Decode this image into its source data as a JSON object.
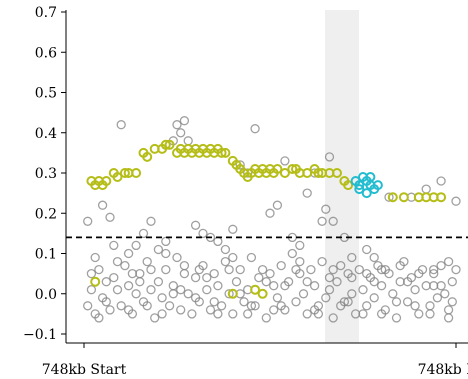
{
  "colors": {
    "background_points": "#808080",
    "highlight_points": "#b5bd17",
    "target_points": "#22bcd0",
    "threshold_line": "#000000",
    "shade": "#efefef"
  },
  "chart_data": {
    "type": "scatter",
    "title": "",
    "xlabel": "",
    "ylabel": "",
    "x_ticks": [
      "748kb Start",
      "748kb End"
    ],
    "y_ticks": [
      "0.7",
      "0.6",
      "0.5",
      "0.4",
      "0.3",
      "0.2",
      "0.1",
      "0.0",
      "−0.1"
    ],
    "y_tick_values": [
      0.7,
      0.6,
      0.5,
      0.4,
      0.3,
      0.2,
      0.1,
      0.0,
      -0.1
    ],
    "ylim": [
      -0.12,
      0.7
    ],
    "xlim": [
      -0.03,
      1.03
    ],
    "grid": false,
    "threshold": 0.14,
    "shaded_x_range": [
      0.68,
      0.8
    ],
    "series": [
      {
        "role": "background",
        "color": "#808080",
        "points": [
          [
            0.01,
            0.18
          ],
          [
            0.03,
            0.09
          ],
          [
            0.05,
            0.22
          ],
          [
            0.07,
            0.19
          ],
          [
            0.1,
            0.42
          ],
          [
            0.12,
            0.1
          ],
          [
            0.14,
            0.12
          ],
          [
            0.16,
            0.15
          ],
          [
            0.18,
            0.18
          ],
          [
            0.2,
            0.11
          ],
          [
            0.22,
            0.13
          ],
          [
            0.24,
            0.38
          ],
          [
            0.25,
            0.42
          ],
          [
            0.26,
            0.4
          ],
          [
            0.27,
            0.43
          ],
          [
            0.28,
            0.38
          ],
          [
            0.3,
            0.17
          ],
          [
            0.32,
            0.15
          ],
          [
            0.34,
            0.14
          ],
          [
            0.36,
            0.13
          ],
          [
            0.38,
            0.11
          ],
          [
            0.4,
            0.16
          ],
          [
            0.42,
            0.32
          ],
          [
            0.44,
            0.3
          ],
          [
            0.46,
            0.41
          ],
          [
            0.5,
            0.2
          ],
          [
            0.52,
            0.22
          ],
          [
            0.54,
            0.33
          ],
          [
            0.56,
            0.14
          ],
          [
            0.58,
            0.12
          ],
          [
            0.6,
            0.25
          ],
          [
            0.62,
            0.3
          ],
          [
            0.64,
            0.18
          ],
          [
            0.65,
            0.21
          ],
          [
            0.66,
            0.34
          ],
          [
            0.67,
            0.18
          ],
          [
            0.7,
            0.14
          ],
          [
            0.72,
            0.09
          ],
          [
            0.74,
            0.27
          ],
          [
            0.76,
            0.11
          ],
          [
            0.78,
            0.09
          ],
          [
            0.8,
            0.06
          ],
          [
            0.82,
            0.24
          ],
          [
            0.86,
            0.24
          ],
          [
            0.88,
            0.24
          ],
          [
            0.9,
            0.24
          ],
          [
            0.92,
            0.26
          ],
          [
            0.94,
            0.06
          ],
          [
            0.96,
            0.28
          ],
          [
            0.98,
            0.08
          ],
          [
            1.0,
            0.23
          ],
          [
            0.01,
            -0.03
          ],
          [
            0.02,
            0.01
          ],
          [
            0.03,
            -0.05
          ],
          [
            0.04,
            0.06
          ],
          [
            0.05,
            -0.01
          ],
          [
            0.06,
            0.03
          ],
          [
            0.07,
            -0.04
          ],
          [
            0.08,
            0.04
          ],
          [
            0.09,
            0.01
          ],
          [
            0.1,
            -0.03
          ],
          [
            0.11,
            0.07
          ],
          [
            0.12,
            0.02
          ],
          [
            0.13,
            -0.05
          ],
          [
            0.14,
            0.0
          ],
          [
            0.15,
            0.05
          ],
          [
            0.16,
            -0.02
          ],
          [
            0.17,
            0.08
          ],
          [
            0.18,
            0.01
          ],
          [
            0.19,
            -0.06
          ],
          [
            0.2,
            0.03
          ],
          [
            0.21,
            -0.01
          ],
          [
            0.22,
            0.06
          ],
          [
            0.23,
            -0.03
          ],
          [
            0.24,
            0.02
          ],
          [
            0.25,
            0.09
          ],
          [
            0.26,
            -0.04
          ],
          [
            0.27,
            0.05
          ],
          [
            0.28,
            0.0
          ],
          [
            0.29,
            -0.05
          ],
          [
            0.3,
            0.04
          ],
          [
            0.31,
            -0.02
          ],
          [
            0.32,
            0.07
          ],
          [
            0.33,
            0.01
          ],
          [
            0.34,
            -0.04
          ],
          [
            0.35,
            0.05
          ],
          [
            0.36,
            0.02
          ],
          [
            0.37,
            -0.03
          ],
          [
            0.38,
            0.08
          ],
          [
            0.39,
            0.0
          ],
          [
            0.4,
            -0.05
          ],
          [
            0.41,
            0.03
          ],
          [
            0.42,
            0.06
          ],
          [
            0.43,
            -0.02
          ],
          [
            0.44,
            0.01
          ],
          [
            0.45,
            0.09
          ],
          [
            0.46,
            -0.03
          ],
          [
            0.47,
            0.04
          ],
          [
            0.48,
            0.0
          ],
          [
            0.49,
            -0.06
          ],
          [
            0.5,
            0.05
          ],
          [
            0.51,
            0.02
          ],
          [
            0.52,
            -0.01
          ],
          [
            0.53,
            0.07
          ],
          [
            0.54,
            -0.04
          ],
          [
            0.55,
            0.03
          ],
          [
            0.56,
            0.1
          ],
          [
            0.57,
            -0.02
          ],
          [
            0.58,
            0.05
          ],
          [
            0.59,
            0.0
          ],
          [
            0.6,
            -0.05
          ],
          [
            0.61,
            0.06
          ],
          [
            0.62,
            0.02
          ],
          [
            0.63,
            -0.03
          ],
          [
            0.64,
            0.08
          ],
          [
            0.65,
            -0.01
          ],
          [
            0.66,
            0.04
          ],
          [
            0.67,
            -0.06
          ],
          [
            0.68,
            0.03
          ],
          [
            0.69,
            0.07
          ],
          [
            0.7,
            -0.02
          ],
          [
            0.71,
            0.05
          ],
          [
            0.72,
            0.0
          ],
          [
            0.73,
            -0.05
          ],
          [
            0.74,
            0.06
          ],
          [
            0.75,
            0.01
          ],
          [
            0.76,
            -0.03
          ],
          [
            0.77,
            0.04
          ],
          [
            0.78,
            -0.01
          ],
          [
            0.79,
            0.07
          ],
          [
            0.8,
            0.02
          ],
          [
            0.81,
            -0.04
          ],
          [
            0.82,
            0.05
          ],
          [
            0.83,
            0.0
          ],
          [
            0.84,
            -0.06
          ],
          [
            0.85,
            0.03
          ],
          [
            0.86,
            0.08
          ],
          [
            0.87,
            -0.02
          ],
          [
            0.88,
            0.04
          ],
          [
            0.89,
            0.01
          ],
          [
            0.9,
            -0.05
          ],
          [
            0.91,
            0.06
          ],
          [
            0.92,
            0.02
          ],
          [
            0.93,
            -0.03
          ],
          [
            0.94,
            0.05
          ],
          [
            0.95,
            -0.01
          ],
          [
            0.96,
            0.07
          ],
          [
            0.97,
            0.0
          ],
          [
            0.98,
            -0.04
          ],
          [
            0.99,
            0.03
          ],
          [
            1.0,
            0.06
          ],
          [
            0.02,
            0.05
          ],
          [
            0.06,
            -0.02
          ],
          [
            0.09,
            0.08
          ],
          [
            0.12,
            -0.04
          ],
          [
            0.15,
            0.03
          ],
          [
            0.18,
            0.06
          ],
          [
            0.21,
            -0.05
          ],
          [
            0.24,
            0.0
          ],
          [
            0.27,
            0.07
          ],
          [
            0.3,
            -0.01
          ],
          [
            0.33,
            0.04
          ],
          [
            0.36,
            -0.05
          ],
          [
            0.39,
            0.06
          ],
          [
            0.42,
            0.0
          ],
          [
            0.45,
            -0.03
          ],
          [
            0.48,
            0.06
          ],
          [
            0.51,
            -0.04
          ],
          [
            0.54,
            0.02
          ],
          [
            0.57,
            0.06
          ],
          [
            0.6,
            0.03
          ],
          [
            0.63,
            -0.05
          ],
          [
            0.66,
            0.01
          ],
          [
            0.69,
            -0.03
          ],
          [
            0.72,
            0.04
          ],
          [
            0.75,
            -0.05
          ],
          [
            0.78,
            0.03
          ],
          [
            0.81,
            0.06
          ],
          [
            0.84,
            -0.02
          ],
          [
            0.87,
            0.03
          ],
          [
            0.9,
            0.05
          ],
          [
            0.93,
            -0.05
          ],
          [
            0.96,
            0.02
          ],
          [
            0.99,
            -0.02
          ],
          [
            0.04,
            -0.06
          ],
          [
            0.08,
            0.12
          ],
          [
            0.13,
            0.05
          ],
          [
            0.17,
            -0.03
          ],
          [
            0.22,
            0.1
          ],
          [
            0.26,
            0.01
          ],
          [
            0.31,
            0.06
          ],
          [
            0.35,
            -0.02
          ],
          [
            0.4,
            0.09
          ],
          [
            0.44,
            -0.05
          ],
          [
            0.49,
            0.03
          ],
          [
            0.53,
            -0.03
          ],
          [
            0.58,
            0.08
          ],
          [
            0.62,
            -0.04
          ],
          [
            0.67,
            0.06
          ],
          [
            0.71,
            -0.02
          ],
          [
            0.76,
            0.05
          ],
          [
            0.8,
            -0.05
          ],
          [
            0.85,
            0.07
          ],
          [
            0.89,
            -0.03
          ],
          [
            0.94,
            0.02
          ],
          [
            0.98,
            -0.06
          ]
        ]
      },
      {
        "role": "highlight",
        "color": "#b5bd17",
        "points": [
          [
            0.02,
            0.28
          ],
          [
            0.03,
            0.27
          ],
          [
            0.04,
            0.28
          ],
          [
            0.05,
            0.27
          ],
          [
            0.06,
            0.28
          ],
          [
            0.08,
            0.3
          ],
          [
            0.09,
            0.29
          ],
          [
            0.11,
            0.3
          ],
          [
            0.12,
            0.3
          ],
          [
            0.14,
            0.3
          ],
          [
            0.16,
            0.35
          ],
          [
            0.17,
            0.34
          ],
          [
            0.19,
            0.36
          ],
          [
            0.21,
            0.36
          ],
          [
            0.22,
            0.37
          ],
          [
            0.23,
            0.37
          ],
          [
            0.25,
            0.35
          ],
          [
            0.26,
            0.36
          ],
          [
            0.27,
            0.35
          ],
          [
            0.28,
            0.36
          ],
          [
            0.29,
            0.35
          ],
          [
            0.3,
            0.36
          ],
          [
            0.31,
            0.35
          ],
          [
            0.32,
            0.36
          ],
          [
            0.33,
            0.35
          ],
          [
            0.34,
            0.36
          ],
          [
            0.35,
            0.35
          ],
          [
            0.36,
            0.36
          ],
          [
            0.37,
            0.35
          ],
          [
            0.38,
            0.35
          ],
          [
            0.4,
            0.33
          ],
          [
            0.41,
            0.32
          ],
          [
            0.42,
            0.31
          ],
          [
            0.43,
            0.3
          ],
          [
            0.44,
            0.29
          ],
          [
            0.45,
            0.3
          ],
          [
            0.46,
            0.31
          ],
          [
            0.47,
            0.3
          ],
          [
            0.48,
            0.31
          ],
          [
            0.49,
            0.3
          ],
          [
            0.5,
            0.31
          ],
          [
            0.51,
            0.3
          ],
          [
            0.52,
            0.31
          ],
          [
            0.54,
            0.3
          ],
          [
            0.56,
            0.31
          ],
          [
            0.57,
            0.31
          ],
          [
            0.58,
            0.3
          ],
          [
            0.6,
            0.3
          ],
          [
            0.62,
            0.31
          ],
          [
            0.63,
            0.3
          ],
          [
            0.64,
            0.3
          ],
          [
            0.66,
            0.3
          ],
          [
            0.68,
            0.3
          ],
          [
            0.7,
            0.28
          ],
          [
            0.71,
            0.27
          ],
          [
            0.83,
            0.24
          ],
          [
            0.86,
            0.24
          ],
          [
            0.9,
            0.24
          ],
          [
            0.92,
            0.24
          ],
          [
            0.94,
            0.24
          ],
          [
            0.96,
            0.24
          ],
          [
            0.03,
            0.03
          ],
          [
            0.4,
            0.0
          ],
          [
            0.46,
            0.01
          ],
          [
            0.48,
            0.0
          ]
        ]
      },
      {
        "role": "target",
        "color": "#22bcd0",
        "points": [
          [
            0.73,
            0.28
          ],
          [
            0.74,
            0.27
          ],
          [
            0.75,
            0.29
          ],
          [
            0.76,
            0.28
          ],
          [
            0.77,
            0.27
          ],
          [
            0.78,
            0.26
          ],
          [
            0.76,
            0.25
          ],
          [
            0.74,
            0.26
          ],
          [
            0.79,
            0.27
          ],
          [
            0.77,
            0.29
          ]
        ]
      }
    ]
  }
}
